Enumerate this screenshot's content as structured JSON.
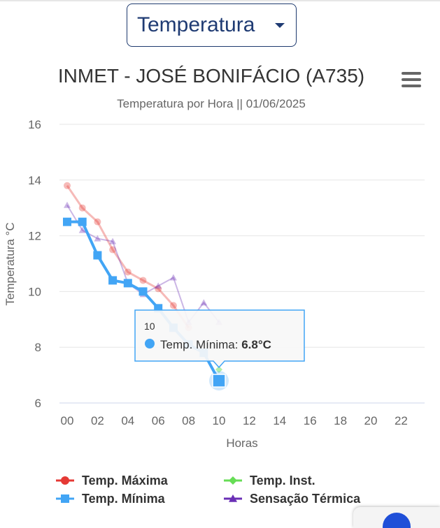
{
  "selector": {
    "value": "Temperatura"
  },
  "chart_data": {
    "type": "line",
    "title": "INMET - JOSÉ BONIFÁCIO (A735)",
    "subtitle": "Temperatura por Hora || 01/06/2025",
    "xlabel": "Horas",
    "ylabel": "Temperatura °C",
    "x_ticks": [
      "00",
      "02",
      "04",
      "06",
      "08",
      "10",
      "12",
      "14",
      "16",
      "18",
      "20",
      "22"
    ],
    "y_ticks": [
      6,
      8,
      10,
      12,
      14,
      16
    ],
    "xlim": [
      0,
      23
    ],
    "ylim": [
      6,
      16
    ],
    "grid": "horizontal",
    "legend_position": "bottom",
    "series": [
      {
        "name": "Temp. Máxima",
        "color": "#e53935",
        "marker": "circle",
        "x": [
          0,
          1,
          2,
          3,
          4,
          5,
          6,
          7,
          8
        ],
        "values": [
          13.8,
          13.0,
          12.5,
          11.5,
          10.7,
          10.4,
          10.1,
          9.5,
          8.7
        ]
      },
      {
        "name": "Temp. Inst.",
        "color": "#66dd55",
        "marker": "diamond",
        "x": [
          0,
          1,
          2,
          3,
          4,
          5,
          6,
          7,
          8,
          9,
          10
        ],
        "values": [
          null,
          null,
          null,
          null,
          null,
          null,
          null,
          null,
          null,
          null,
          7.2
        ]
      },
      {
        "name": "Temp. Mínima",
        "color": "#42a5f5",
        "marker": "square",
        "x": [
          0,
          1,
          2,
          3,
          4,
          5,
          6,
          7,
          8,
          9,
          10
        ],
        "values": [
          12.5,
          12.5,
          11.3,
          10.4,
          10.3,
          10.0,
          9.4,
          8.7,
          8.1,
          7.8,
          6.8
        ]
      },
      {
        "name": "Sensação Térmica",
        "color": "#6a2fb5",
        "marker": "triangle",
        "x": [
          0,
          1,
          2,
          3,
          4,
          5,
          6,
          7,
          8,
          9,
          10
        ],
        "values": [
          13.1,
          12.2,
          11.9,
          11.8,
          10.3,
          9.9,
          10.2,
          10.5,
          8.9,
          9.6,
          8.9
        ]
      }
    ],
    "tooltip": {
      "header": "10",
      "series_label": "Temp. Mínima: ",
      "value_text": "6.8°C",
      "x": 10,
      "y": 6.8,
      "color": "#42a5f5"
    }
  }
}
